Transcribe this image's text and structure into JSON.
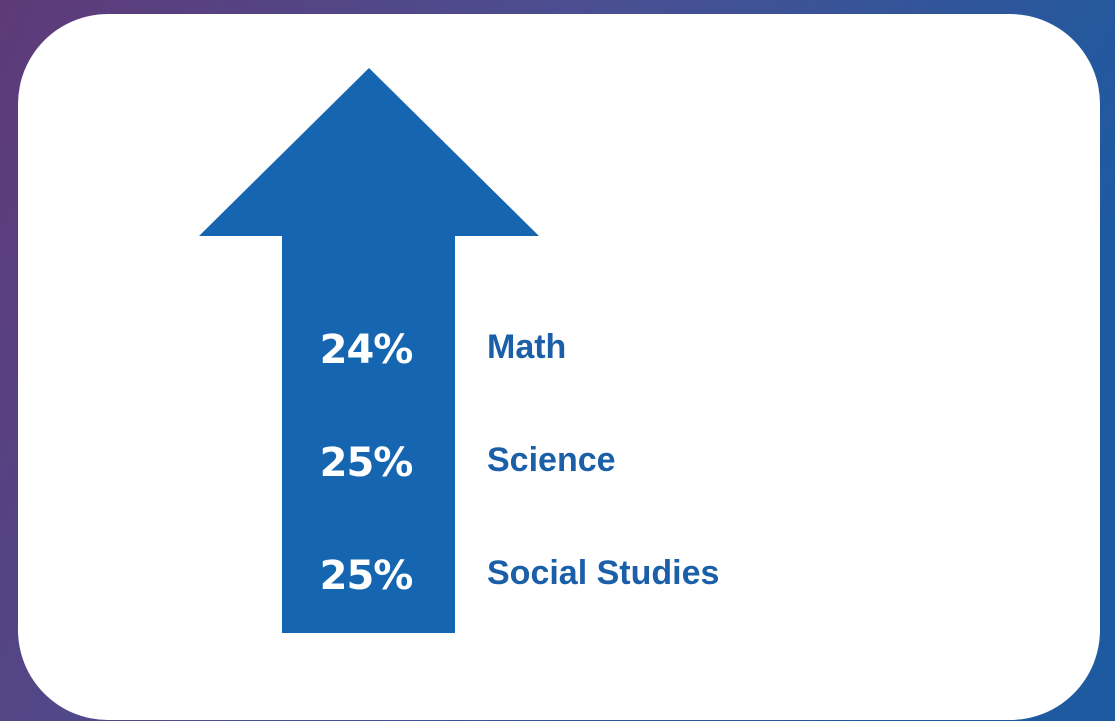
{
  "items": [
    {
      "value": "24%",
      "label": "Math"
    },
    {
      "value": "25%",
      "label": "Science"
    },
    {
      "value": "25%",
      "label": "Social Studies"
    }
  ]
}
